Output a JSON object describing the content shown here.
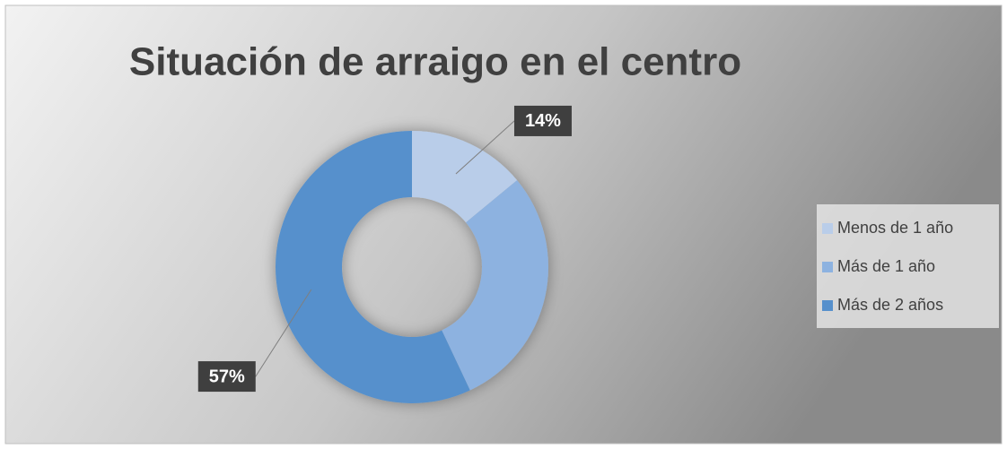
{
  "chart_data": {
    "type": "donut",
    "title": "Situación de arraigo en el centro",
    "categories": [
      "Menos de 1 año",
      "Más de 1 año",
      "Más de 2 años"
    ],
    "values": [
      14,
      29,
      57
    ],
    "value_labels": [
      "14%",
      null,
      "57%"
    ],
    "colors": [
      "#b9cde9",
      "#8db2e0",
      "#5690cc"
    ],
    "legend": "right"
  }
}
